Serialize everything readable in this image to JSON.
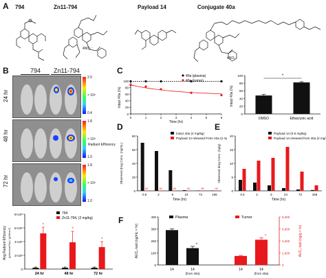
{
  "panel_a": {
    "letter": "A",
    "structures": [
      {
        "label": "794"
      },
      {
        "label": "Zn11-794"
      },
      {
        "label": "Payload 14"
      },
      {
        "label": "Conjugate 40a"
      }
    ],
    "anion": "4NO₃⁻",
    "anion2": "4NO₃⁻"
  },
  "panel_b": {
    "letter": "B",
    "group_labels": [
      "794",
      "Zn11-794"
    ],
    "rows": [
      {
        "label": "24 hr",
        "scale_top": "2.0",
        "scale_bot": "0.4",
        "scale_exp": "× 10⁸"
      },
      {
        "label": "48 hr",
        "scale_top": "1.8",
        "scale_bot": "1.0",
        "scale_exp": "× 10⁸"
      },
      {
        "label": "72 hr",
        "scale_top": "1.8",
        "scale_bot": "1.0",
        "scale_exp": "× 10⁸"
      }
    ],
    "scale_caption": "Radiant Efficiency",
    "scale_units": "(p/sec/cm²/sr) / (μW/cm²)",
    "scale_mid_label": "Radiant Efficiency",
    "colors": {
      "high": "#ff1a1a",
      "mid": "#ffe600",
      "low": "#1010ff"
    }
  },
  "panel_c": {
    "letter": "C"
  },
  "panel_d": {
    "letter": "D"
  },
  "panel_e": {
    "letter": "E"
  },
  "panel_f": {
    "letter": "F"
  },
  "chart_data": [
    {
      "id": "B-bar",
      "type": "bar",
      "categories": [
        "24 hr",
        "48 hr",
        "72 hr"
      ],
      "series": [
        {
          "name": "794",
          "values": [
            0.2,
            0.2,
            0.2
          ],
          "errors": [
            0.1,
            0.1,
            0.1
          ],
          "color": "#111111"
        },
        {
          "name": "Zn11-794, (2 mg/kg)",
          "values": [
            5.2,
            3.9,
            3.2
          ],
          "errors": [
            0.9,
            1.6,
            0.8
          ],
          "color": "#e8191c"
        }
      ],
      "ylabel": "Avg Radiant Efficiency",
      "ylabel_units": "(p/sec/cm²/sr) / (μW/cm²)",
      "ylim": [
        0,
        8
      ],
      "yticks": [
        "0",
        "2×10⁸",
        "4×10⁸",
        "6×10⁸",
        "8×10⁸"
      ],
      "significance": [
        "*",
        "*",
        "*"
      ]
    },
    {
      "id": "C-line",
      "type": "line",
      "series": [
        {
          "name": "40a (plasma)",
          "x": [
            0,
            1,
            2,
            4,
            6
          ],
          "y": [
            99,
            99,
            99,
            99,
            99
          ],
          "color": "#111111"
        },
        {
          "name": "40a (tumor)",
          "x": [
            0,
            1,
            2,
            4,
            6
          ],
          "y": [
            88,
            83,
            75,
            64,
            57
          ],
          "color": "#e8191c"
        }
      ],
      "xlabel": "Time (hr)",
      "ylabel": "Intact 40a (%)",
      "xlim": [
        0,
        6
      ],
      "ylim": [
        0,
        100
      ],
      "xticks": [
        "0",
        "1",
        "2",
        "3",
        "4",
        "5",
        "6"
      ],
      "yticks": [
        "0",
        "20",
        "40",
        "60",
        "80",
        "100"
      ]
    },
    {
      "id": "C-bar",
      "type": "bar",
      "categories": [
        "DMSO",
        "Ethacrynic acid"
      ],
      "values": [
        48,
        82
      ],
      "errors": [
        3,
        2
      ],
      "ylabel": "Intact 40a (%)",
      "ylim": [
        0,
        100
      ],
      "yticks": [
        "0",
        "20",
        "40",
        "60",
        "80",
        "100"
      ],
      "significance": "*"
    },
    {
      "id": "D-bar",
      "type": "bar",
      "categories": [
        "0.5",
        "2",
        "6",
        "24",
        "72",
        "168"
      ],
      "series": [
        {
          "name": "Intact 40a (2 mg/kg)",
          "values": [
            70,
            58,
            30,
            1,
            0.5,
            0.3
          ],
          "color": "#111111"
        },
        {
          "name": "Payload 14 released From 40a (2 mg/kg)",
          "values": [
            0.5,
            0.5,
            0.5,
            0.3,
            0.2,
            0.2
          ],
          "color": "#e8191c"
        }
      ],
      "nd_labels": [
        "ND",
        "ND",
        "ND",
        "ND",
        "ND",
        "ND"
      ],
      "xlabel": "Time (hr)",
      "ylabel": "Observed drug Conc. (ng/mL)",
      "ylim": [
        0,
        80
      ],
      "yticks": [
        "0",
        "20",
        "40",
        "60",
        "80"
      ]
    },
    {
      "id": "E-bar",
      "type": "bar",
      "categories": [
        "0.5",
        "2",
        "6",
        "24",
        "72",
        "168"
      ],
      "series": [
        {
          "name": "Payload 14 (0.6 mg/kg)",
          "values": [
            4,
            3,
            2,
            1,
            0.5,
            0.3
          ],
          "color": "#111111"
        },
        {
          "name": "Payload 14 released from 40a (2 mg/kg)",
          "values": [
            8,
            11,
            12,
            16,
            7,
            2
          ],
          "color": "#e8191c"
        }
      ],
      "xlabel": "Time (hr)",
      "ylabel": "Observed drug Conc. (ng/g)",
      "ylim": [
        0,
        20
      ],
      "yticks": [
        "0",
        "5",
        "10",
        "15",
        "20"
      ]
    },
    {
      "id": "F-bar",
      "type": "bar",
      "groups": [
        {
          "name": "Plasma",
          "color": "#111111",
          "categories": [
            "14",
            "14 (from 40a)"
          ],
          "values": [
            290,
            140
          ],
          "errors": [
            10,
            15
          ],
          "axis": "left"
        },
        {
          "name": "Tumor",
          "color": "#e8191c",
          "categories": [
            "14",
            "14 (from 40a)"
          ],
          "values": [
            1.5,
            4.2
          ],
          "errors": [
            0.1,
            0.3
          ],
          "axis": "right"
        }
      ],
      "ylabel_left": "AUC₀-last (ng/mL × hr)",
      "ylabel_right": "AUC₀-last (ng/g × hr)",
      "ylim_left": [
        0,
        400
      ],
      "ylim_right": [
        0,
        8
      ],
      "yticks_left": [
        "0",
        "100",
        "200",
        "300",
        "400"
      ],
      "yticks_right": [
        "0",
        "2,000",
        "4,000",
        "6,000",
        "8,000"
      ],
      "significance": [
        "*",
        "*"
      ]
    }
  ]
}
